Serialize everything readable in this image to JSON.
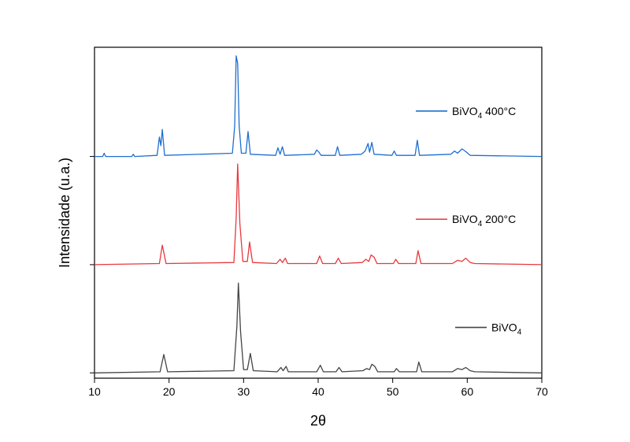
{
  "chart_data": {
    "type": "line",
    "title": "",
    "xlabel": "2θ",
    "ylabel": "Intensidade (u.a.)",
    "xlim": [
      10,
      70
    ],
    "ylim": [
      0,
      3
    ],
    "x_ticks": [
      "10",
      "20",
      "30",
      "40",
      "50",
      "60",
      "70"
    ],
    "y_ticks_labeled": false,
    "grid": false,
    "series": [
      {
        "name": "BiVO4",
        "legend_main": "BiVO",
        "legend_sub": "4",
        "legend_suffix": "",
        "color": "#454545",
        "baseline": 0.02,
        "points": [
          [
            10,
            0.02
          ],
          [
            18.8,
            0.03
          ],
          [
            19.3,
            0.19
          ],
          [
            19.8,
            0.03
          ],
          [
            28.7,
            0.04
          ],
          [
            29.1,
            0.45
          ],
          [
            29.3,
            0.85
          ],
          [
            29.6,
            0.4
          ],
          [
            30.0,
            0.05
          ],
          [
            30.5,
            0.05
          ],
          [
            30.9,
            0.2
          ],
          [
            31.3,
            0.04
          ],
          [
            34.5,
            0.03
          ],
          [
            35.0,
            0.07
          ],
          [
            35.3,
            0.04
          ],
          [
            35.7,
            0.08
          ],
          [
            36.0,
            0.03
          ],
          [
            39.8,
            0.03
          ],
          [
            40.3,
            0.09
          ],
          [
            40.7,
            0.03
          ],
          [
            42.4,
            0.03
          ],
          [
            42.8,
            0.07
          ],
          [
            43.2,
            0.03
          ],
          [
            46.0,
            0.04
          ],
          [
            46.5,
            0.06
          ],
          [
            46.9,
            0.05
          ],
          [
            47.2,
            0.1
          ],
          [
            47.6,
            0.08
          ],
          [
            48.0,
            0.03
          ],
          [
            50.2,
            0.03
          ],
          [
            50.5,
            0.06
          ],
          [
            50.9,
            0.03
          ],
          [
            53.2,
            0.03
          ],
          [
            53.5,
            0.12
          ],
          [
            53.9,
            0.03
          ],
          [
            58.0,
            0.03
          ],
          [
            58.7,
            0.06
          ],
          [
            59.3,
            0.05
          ],
          [
            59.8,
            0.07
          ],
          [
            60.4,
            0.04
          ],
          [
            61.0,
            0.03
          ],
          [
            70,
            0.02
          ]
        ]
      },
      {
        "name": "BiVO4 200°C",
        "legend_main": "BiVO",
        "legend_sub": "4",
        "legend_suffix": " 200°C",
        "color": "#e8383d",
        "baseline": 1.02,
        "points": [
          [
            10,
            1.02
          ],
          [
            18.7,
            1.03
          ],
          [
            19.1,
            1.2
          ],
          [
            19.6,
            1.03
          ],
          [
            28.7,
            1.04
          ],
          [
            29.0,
            1.45
          ],
          [
            29.2,
            1.95
          ],
          [
            29.5,
            1.4
          ],
          [
            29.9,
            1.05
          ],
          [
            30.5,
            1.05
          ],
          [
            30.8,
            1.23
          ],
          [
            31.2,
            1.04
          ],
          [
            34.4,
            1.03
          ],
          [
            34.9,
            1.07
          ],
          [
            35.2,
            1.04
          ],
          [
            35.6,
            1.08
          ],
          [
            35.9,
            1.03
          ],
          [
            39.8,
            1.03
          ],
          [
            40.2,
            1.1
          ],
          [
            40.6,
            1.03
          ],
          [
            42.3,
            1.03
          ],
          [
            42.7,
            1.08
          ],
          [
            43.1,
            1.03
          ],
          [
            45.9,
            1.04
          ],
          [
            46.4,
            1.07
          ],
          [
            46.8,
            1.05
          ],
          [
            47.1,
            1.11
          ],
          [
            47.5,
            1.09
          ],
          [
            47.9,
            1.03
          ],
          [
            50.1,
            1.03
          ],
          [
            50.4,
            1.07
          ],
          [
            50.8,
            1.03
          ],
          [
            53.1,
            1.03
          ],
          [
            53.4,
            1.15
          ],
          [
            53.8,
            1.03
          ],
          [
            58.0,
            1.03
          ],
          [
            58.7,
            1.06
          ],
          [
            59.3,
            1.05
          ],
          [
            59.8,
            1.08
          ],
          [
            60.4,
            1.04
          ],
          [
            61.0,
            1.03
          ],
          [
            70,
            1.02
          ]
        ]
      },
      {
        "name": "BiVO4 400°C",
        "legend_main": "BiVO",
        "legend_sub": "4",
        "legend_suffix": " 400°C",
        "color": "#1f6fd1",
        "baseline": 2.02,
        "points": [
          [
            10,
            2.02
          ],
          [
            11.1,
            2.02
          ],
          [
            11.3,
            2.05
          ],
          [
            11.5,
            2.02
          ],
          [
            15.0,
            2.02
          ],
          [
            15.2,
            2.04
          ],
          [
            15.4,
            2.02
          ],
          [
            18.4,
            2.03
          ],
          [
            18.7,
            2.2
          ],
          [
            18.9,
            2.12
          ],
          [
            19.1,
            2.27
          ],
          [
            19.4,
            2.03
          ],
          [
            28.5,
            2.05
          ],
          [
            28.8,
            2.3
          ],
          [
            29.0,
            2.95
          ],
          [
            29.2,
            2.88
          ],
          [
            29.4,
            2.3
          ],
          [
            29.7,
            2.05
          ],
          [
            30.3,
            2.05
          ],
          [
            30.6,
            2.25
          ],
          [
            30.9,
            2.04
          ],
          [
            34.3,
            2.03
          ],
          [
            34.6,
            2.1
          ],
          [
            34.9,
            2.04
          ],
          [
            35.2,
            2.11
          ],
          [
            35.5,
            2.03
          ],
          [
            39.5,
            2.04
          ],
          [
            39.8,
            2.08
          ],
          [
            40.1,
            2.06
          ],
          [
            40.4,
            2.03
          ],
          [
            42.3,
            2.03
          ],
          [
            42.6,
            2.11
          ],
          [
            42.9,
            2.03
          ],
          [
            45.8,
            2.04
          ],
          [
            46.3,
            2.07
          ],
          [
            46.7,
            2.14
          ],
          [
            46.9,
            2.06
          ],
          [
            47.2,
            2.15
          ],
          [
            47.5,
            2.04
          ],
          [
            49.9,
            2.03
          ],
          [
            50.2,
            2.07
          ],
          [
            50.5,
            2.03
          ],
          [
            53.0,
            2.03
          ],
          [
            53.3,
            2.17
          ],
          [
            53.6,
            2.03
          ],
          [
            57.8,
            2.04
          ],
          [
            58.3,
            2.07
          ],
          [
            58.7,
            2.05
          ],
          [
            59.3,
            2.09
          ],
          [
            59.9,
            2.06
          ],
          [
            60.4,
            2.03
          ],
          [
            70,
            2.02
          ]
        ]
      }
    ]
  }
}
